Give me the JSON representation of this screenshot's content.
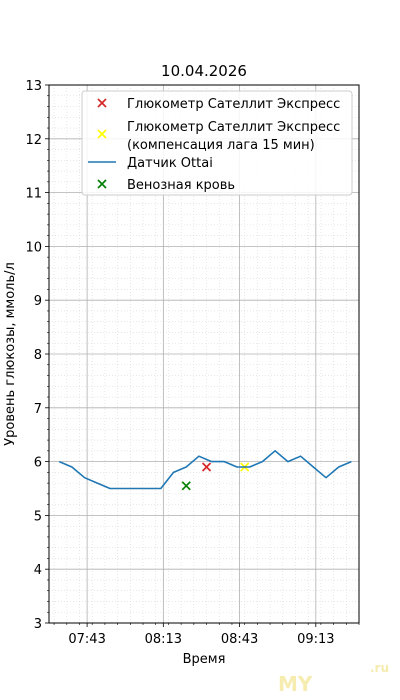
{
  "chart_data": {
    "type": "line",
    "title": "10.04.2026",
    "xlabel": "Время",
    "ylabel": "Уровень глюкозы, ммоль/л",
    "ylim": [
      3,
      13
    ],
    "xlim": [
      "07:28",
      "09:30"
    ],
    "grid": true,
    "y_ticks": [
      "3",
      "4",
      "5",
      "6",
      "7",
      "8",
      "9",
      "10",
      "11",
      "12",
      "13"
    ],
    "x_ticks": [
      "07:43",
      "08:13",
      "08:43",
      "09:13"
    ],
    "legend_position": "top-right",
    "series": [
      {
        "name": "Глюкометр Сателлит Экспресс",
        "kind": "scatter",
        "marker": "x",
        "color": "#d62728",
        "x": [
          "08:30"
        ],
        "y": [
          5.9
        ]
      },
      {
        "name": "Глюкометр Сателлит Экспресс\n(компенсация лага 15 мин)",
        "kind": "scatter",
        "marker": "x",
        "color": "#ffff00",
        "x": [
          "08:45"
        ],
        "y": [
          5.9
        ]
      },
      {
        "name": "Датчик Ottai",
        "kind": "line",
        "color": "#1f77b4",
        "x": [
          "07:32",
          "07:37",
          "07:42",
          "07:47",
          "07:52",
          "07:57",
          "08:02",
          "08:07",
          "08:12",
          "08:17",
          "08:22",
          "08:27",
          "08:32",
          "08:37",
          "08:42",
          "08:47",
          "08:52",
          "08:57",
          "09:02",
          "09:07",
          "09:12",
          "09:17",
          "09:22",
          "09:27"
        ],
        "y": [
          6.0,
          5.9,
          5.7,
          5.6,
          5.5,
          5.5,
          5.5,
          5.5,
          5.5,
          5.8,
          5.9,
          6.1,
          6.0,
          6.0,
          5.9,
          5.9,
          6.0,
          6.2,
          6.0,
          6.1,
          5.9,
          5.7,
          5.9,
          6.0
        ]
      },
      {
        "name": "Венозная кровь",
        "kind": "scatter",
        "marker": "x",
        "color": "#008000",
        "x": [
          "08:22"
        ],
        "y": [
          5.55
        ]
      }
    ]
  },
  "watermark": {
    "main": "MY",
    "suffix": ".ru"
  }
}
